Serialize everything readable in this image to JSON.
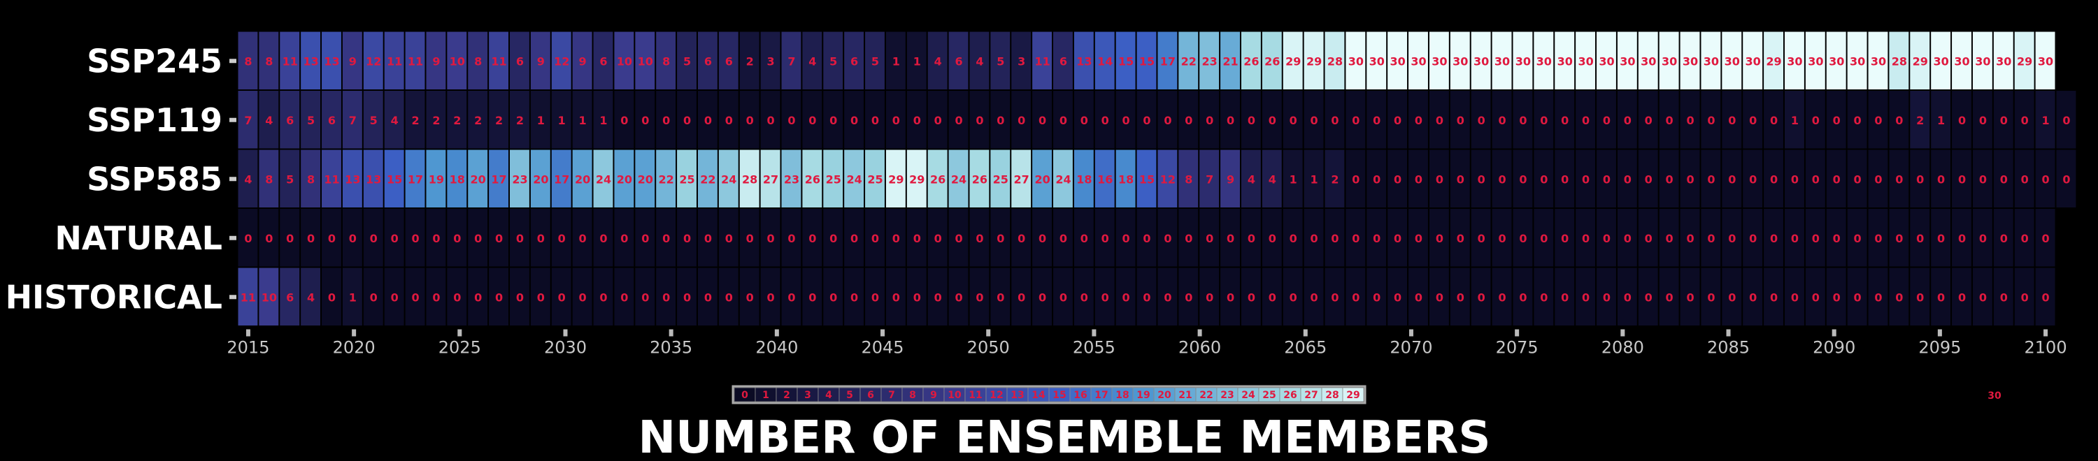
{
  "chart_data": {
    "type": "heatmap",
    "title": "NUMBER OF ENSEMBLE MEMBERS",
    "rows": [
      "SSP245",
      "SSP119",
      "SSP585",
      "NATURAL",
      "HISTORICAL"
    ],
    "x_tick_labels": [
      "2015",
      "2020",
      "2025",
      "2030",
      "2035",
      "2040",
      "2045",
      "2050",
      "2055",
      "2060",
      "2065",
      "2070",
      "2075",
      "2080",
      "2085",
      "2090",
      "2095",
      "2100"
    ],
    "x_range": [
      2015,
      2100
    ],
    "values": [
      [
        8,
        8,
        11,
        13,
        13,
        9,
        12,
        11,
        11,
        9,
        10,
        8,
        11,
        6,
        9,
        12,
        9,
        6,
        10,
        10,
        8,
        5,
        6,
        6,
        2,
        3,
        7,
        4,
        5,
        6,
        5,
        1,
        1,
        4,
        6,
        4,
        5,
        3,
        11,
        6,
        13,
        14,
        15,
        15,
        17,
        22,
        23,
        21,
        26,
        26,
        29,
        29,
        28,
        30,
        30,
        30,
        30,
        30,
        30,
        30,
        30,
        30,
        30,
        30,
        30,
        30,
        30,
        30,
        30,
        30,
        30,
        30,
        30,
        29,
        30,
        30,
        30,
        30,
        30,
        28,
        29,
        30,
        30,
        30,
        30,
        29,
        30
      ],
      [
        7,
        4,
        6,
        5,
        6,
        7,
        5,
        4,
        2,
        2,
        2,
        2,
        2,
        2,
        1,
        1,
        1,
        1,
        0,
        0,
        0,
        0,
        0,
        0,
        0,
        0,
        0,
        0,
        0,
        0,
        0,
        0,
        0,
        0,
        0,
        0,
        0,
        0,
        0,
        0,
        0,
        0,
        0,
        0,
        0,
        0,
        0,
        0,
        0,
        0,
        0,
        0,
        0,
        0,
        0,
        0,
        0,
        0,
        0,
        0,
        0,
        0,
        0,
        0,
        0,
        0,
        0,
        0,
        0,
        0,
        0,
        0,
        0,
        0,
        1,
        0,
        0,
        0,
        0,
        0,
        2,
        1,
        0,
        0,
        0,
        0,
        1,
        0
      ],
      [
        4,
        8,
        5,
        8,
        11,
        13,
        13,
        15,
        17,
        19,
        18,
        20,
        17,
        23,
        20,
        17,
        20,
        24,
        20,
        20,
        22,
        25,
        22,
        24,
        28,
        27,
        23,
        26,
        25,
        24,
        25,
        29,
        29,
        26,
        24,
        26,
        25,
        27,
        20,
        24,
        18,
        16,
        18,
        15,
        12,
        8,
        7,
        9,
        4,
        4,
        1,
        1,
        2,
        0,
        0,
        0,
        0,
        0,
        0,
        0,
        0,
        0,
        0,
        0,
        0,
        0,
        0,
        0,
        0,
        0,
        0,
        0,
        0,
        0,
        0,
        0,
        0,
        0,
        0,
        0,
        0,
        0,
        0,
        0,
        0,
        0,
        0,
        0
      ],
      [
        0,
        0,
        0,
        0,
        0,
        0,
        0,
        0,
        0,
        0,
        0,
        0,
        0,
        0,
        0,
        0,
        0,
        0,
        0,
        0,
        0,
        0,
        0,
        0,
        0,
        0,
        0,
        0,
        0,
        0,
        0,
        0,
        0,
        0,
        0,
        0,
        0,
        0,
        0,
        0,
        0,
        0,
        0,
        0,
        0,
        0,
        0,
        0,
        0,
        0,
        0,
        0,
        0,
        0,
        0,
        0,
        0,
        0,
        0,
        0,
        0,
        0,
        0,
        0,
        0,
        0,
        0,
        0,
        0,
        0,
        0,
        0,
        0,
        0,
        0,
        0,
        0,
        0,
        0,
        0,
        0,
        0,
        0,
        0,
        0,
        0,
        0
      ],
      [
        11,
        10,
        6,
        4,
        0,
        1,
        0,
        0,
        0,
        0,
        0,
        0,
        0,
        0,
        0,
        0,
        0,
        0,
        0,
        0,
        0,
        0,
        0,
        0,
        0,
        0,
        0,
        0,
        0,
        0,
        0,
        0,
        0,
        0,
        0,
        0,
        0,
        0,
        0,
        0,
        0,
        0,
        0,
        0,
        0,
        0,
        0,
        0,
        0,
        0,
        0,
        0,
        0,
        0,
        0,
        0,
        0,
        0,
        0,
        0,
        0,
        0,
        0,
        0,
        0,
        0,
        0,
        0,
        0,
        0,
        0,
        0,
        0,
        0,
        0,
        0,
        0,
        0,
        0,
        0,
        0,
        0,
        0,
        0,
        0,
        0,
        0
      ]
    ],
    "colorbar": {
      "labels": [
        "0",
        "1",
        "2",
        "3",
        "4",
        "5",
        "6",
        "7",
        "8",
        "9",
        "10",
        "11",
        "12",
        "13",
        "14",
        "15",
        "16",
        "17",
        "18",
        "19",
        "20",
        "21",
        "22",
        "23",
        "24",
        "25",
        "26",
        "27",
        "28",
        "29"
      ],
      "max_label": "30",
      "vmin": 0,
      "vmax": 30
    },
    "colors": {
      "background": "#000000",
      "cell_text": "#e0193f",
      "low": "#0b0b24",
      "mid_low": "#3a3a8c",
      "mid": "#3c5fc4",
      "mid_high": "#4a93d0",
      "high": "#9fd7e0",
      "top": "#eafcfc"
    }
  }
}
